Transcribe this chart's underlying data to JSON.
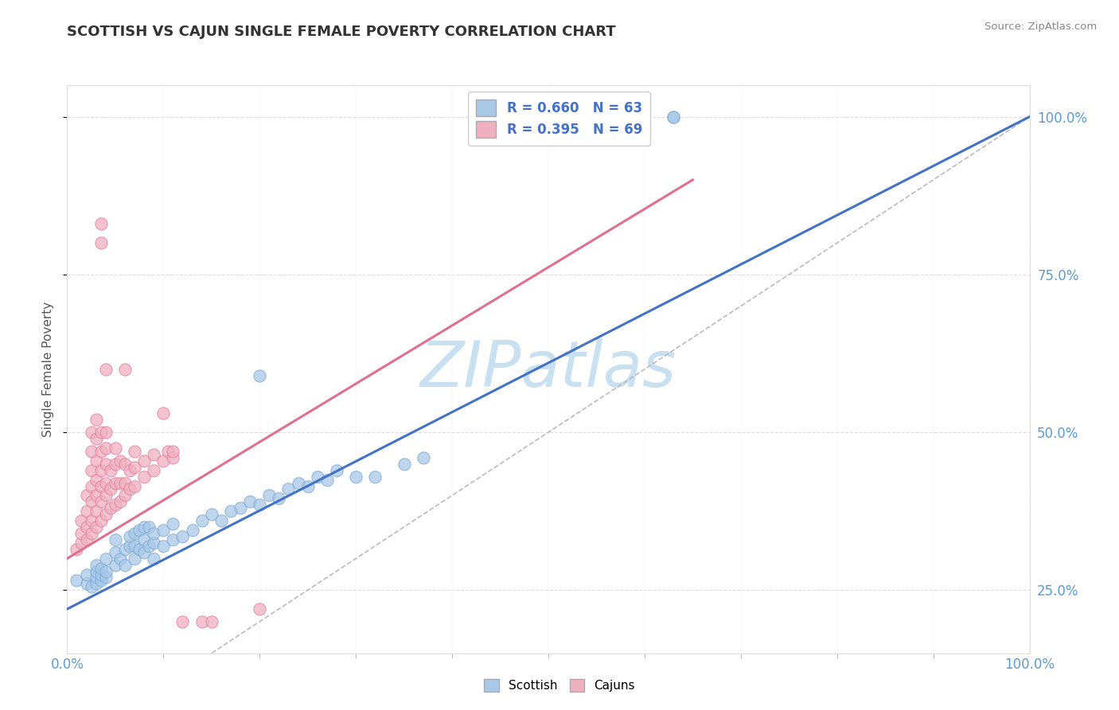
{
  "title": "SCOTTISH VS CAJUN SINGLE FEMALE POVERTY CORRELATION CHART",
  "source": "Source: ZipAtlas.com",
  "ylabel": "Single Female Poverty",
  "scottish_color": "#A8C8E8",
  "scottish_edge": "#7AAAD4",
  "cajun_color": "#F0B0C0",
  "cajun_edge": "#E080A0",
  "scottish_line_color": "#4472C4",
  "cajun_line_color": "#E07090",
  "scottish_R": 0.66,
  "scottish_N": 63,
  "cajun_R": 0.395,
  "cajun_N": 69,
  "scottish_line": [
    0.0,
    0.22,
    1.0,
    1.0
  ],
  "cajun_line": [
    0.0,
    0.3,
    0.65,
    0.9
  ],
  "diag_line_color": "#BBBBBB",
  "grid_color": "#DDDDDD",
  "tick_color": "#5B9BD5",
  "watermark_color": "#C8E0F0",
  "scottish_points": [
    [
      0.01,
      0.265
    ],
    [
      0.02,
      0.26
    ],
    [
      0.02,
      0.275
    ],
    [
      0.025,
      0.255
    ],
    [
      0.03,
      0.26
    ],
    [
      0.03,
      0.27
    ],
    [
      0.03,
      0.28
    ],
    [
      0.03,
      0.29
    ],
    [
      0.035,
      0.265
    ],
    [
      0.035,
      0.275
    ],
    [
      0.035,
      0.285
    ],
    [
      0.04,
      0.27
    ],
    [
      0.04,
      0.28
    ],
    [
      0.04,
      0.3
    ],
    [
      0.05,
      0.29
    ],
    [
      0.05,
      0.31
    ],
    [
      0.05,
      0.33
    ],
    [
      0.055,
      0.3
    ],
    [
      0.06,
      0.29
    ],
    [
      0.06,
      0.315
    ],
    [
      0.065,
      0.32
    ],
    [
      0.065,
      0.335
    ],
    [
      0.07,
      0.3
    ],
    [
      0.07,
      0.32
    ],
    [
      0.07,
      0.34
    ],
    [
      0.075,
      0.315
    ],
    [
      0.075,
      0.345
    ],
    [
      0.08,
      0.31
    ],
    [
      0.08,
      0.33
    ],
    [
      0.08,
      0.35
    ],
    [
      0.085,
      0.32
    ],
    [
      0.085,
      0.35
    ],
    [
      0.09,
      0.3
    ],
    [
      0.09,
      0.325
    ],
    [
      0.09,
      0.34
    ],
    [
      0.1,
      0.32
    ],
    [
      0.1,
      0.345
    ],
    [
      0.11,
      0.33
    ],
    [
      0.11,
      0.355
    ],
    [
      0.12,
      0.335
    ],
    [
      0.13,
      0.345
    ],
    [
      0.14,
      0.36
    ],
    [
      0.15,
      0.37
    ],
    [
      0.16,
      0.36
    ],
    [
      0.17,
      0.375
    ],
    [
      0.18,
      0.38
    ],
    [
      0.19,
      0.39
    ],
    [
      0.2,
      0.385
    ],
    [
      0.21,
      0.4
    ],
    [
      0.22,
      0.395
    ],
    [
      0.23,
      0.41
    ],
    [
      0.24,
      0.42
    ],
    [
      0.25,
      0.415
    ],
    [
      0.26,
      0.43
    ],
    [
      0.27,
      0.425
    ],
    [
      0.28,
      0.44
    ],
    [
      0.3,
      0.43
    ],
    [
      0.32,
      0.43
    ],
    [
      0.35,
      0.45
    ],
    [
      0.37,
      0.46
    ],
    [
      0.2,
      0.59
    ],
    [
      0.63,
      1.0
    ],
    [
      0.63,
      1.0
    ]
  ],
  "cajun_points": [
    [
      0.01,
      0.315
    ],
    [
      0.015,
      0.325
    ],
    [
      0.015,
      0.34
    ],
    [
      0.015,
      0.36
    ],
    [
      0.02,
      0.33
    ],
    [
      0.02,
      0.35
    ],
    [
      0.02,
      0.375
    ],
    [
      0.02,
      0.4
    ],
    [
      0.025,
      0.34
    ],
    [
      0.025,
      0.36
    ],
    [
      0.025,
      0.39
    ],
    [
      0.025,
      0.415
    ],
    [
      0.025,
      0.44
    ],
    [
      0.025,
      0.47
    ],
    [
      0.025,
      0.5
    ],
    [
      0.03,
      0.35
    ],
    [
      0.03,
      0.375
    ],
    [
      0.03,
      0.4
    ],
    [
      0.03,
      0.425
    ],
    [
      0.03,
      0.455
    ],
    [
      0.03,
      0.49
    ],
    [
      0.03,
      0.52
    ],
    [
      0.035,
      0.36
    ],
    [
      0.035,
      0.39
    ],
    [
      0.035,
      0.415
    ],
    [
      0.035,
      0.44
    ],
    [
      0.035,
      0.47
    ],
    [
      0.035,
      0.5
    ],
    [
      0.04,
      0.37
    ],
    [
      0.04,
      0.4
    ],
    [
      0.04,
      0.42
    ],
    [
      0.04,
      0.45
    ],
    [
      0.04,
      0.475
    ],
    [
      0.04,
      0.5
    ],
    [
      0.045,
      0.38
    ],
    [
      0.045,
      0.41
    ],
    [
      0.045,
      0.44
    ],
    [
      0.05,
      0.385
    ],
    [
      0.05,
      0.42
    ],
    [
      0.05,
      0.45
    ],
    [
      0.05,
      0.475
    ],
    [
      0.055,
      0.39
    ],
    [
      0.055,
      0.42
    ],
    [
      0.055,
      0.455
    ],
    [
      0.06,
      0.4
    ],
    [
      0.06,
      0.42
    ],
    [
      0.06,
      0.45
    ],
    [
      0.065,
      0.41
    ],
    [
      0.065,
      0.44
    ],
    [
      0.07,
      0.415
    ],
    [
      0.07,
      0.445
    ],
    [
      0.07,
      0.47
    ],
    [
      0.08,
      0.43
    ],
    [
      0.08,
      0.455
    ],
    [
      0.09,
      0.44
    ],
    [
      0.09,
      0.465
    ],
    [
      0.1,
      0.455
    ],
    [
      0.105,
      0.47
    ],
    [
      0.11,
      0.46
    ],
    [
      0.035,
      0.8
    ],
    [
      0.035,
      0.83
    ],
    [
      0.04,
      0.6
    ],
    [
      0.06,
      0.6
    ],
    [
      0.1,
      0.53
    ],
    [
      0.11,
      0.47
    ],
    [
      0.12,
      0.2
    ],
    [
      0.14,
      0.2
    ],
    [
      0.15,
      0.2
    ],
    [
      0.2,
      0.22
    ]
  ]
}
